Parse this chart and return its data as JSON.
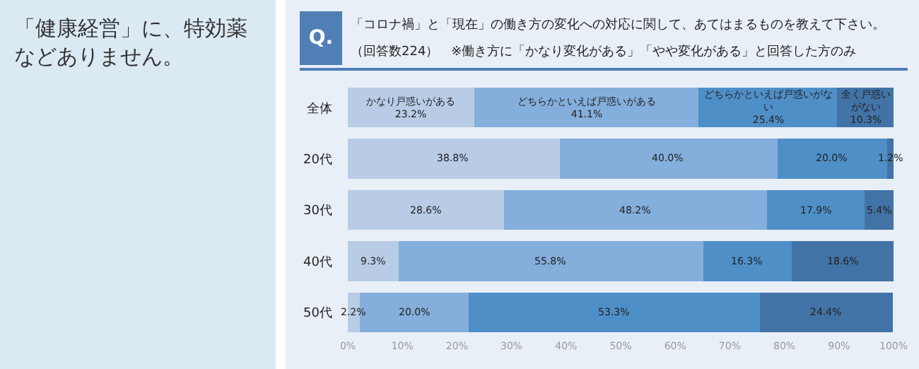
{
  "chart_data": {
    "type": "bar",
    "orientation": "horizontal",
    "stacked": true,
    "title": "「コロナ禍」と「現在」の働き方の変化への対応に関して、あてはまるものを教えて下さい。",
    "subtitle": "（回答数224）　※働き方に「かなり変化がある」「やや変化がある」と回答した方のみ",
    "annotations": [
      "Q.",
      "「健康経営」に、特効薬などありません。"
    ],
    "categories": [
      "全体",
      "20代",
      "30代",
      "40代",
      "50代"
    ],
    "series": [
      {
        "name": "かなり戸惑いがある",
        "color": "#b8cce6",
        "values": [
          23.2,
          38.8,
          28.6,
          9.3,
          2.2
        ],
        "value_labels": [
          "23.2%",
          "38.8%",
          "28.6%",
          "9.3%",
          "2.2%"
        ]
      },
      {
        "name": "どちらかといえば戸惑いがある",
        "color": "#84aedb",
        "values": [
          41.1,
          40.0,
          48.2,
          55.8,
          20.0
        ],
        "value_labels": [
          "41.1%",
          "40.0%",
          "48.2%",
          "55.8%",
          "20.0%"
        ]
      },
      {
        "name": "どちらかといえば戸惑いがない",
        "color": "#4f8fc8",
        "values": [
          25.4,
          20.0,
          17.9,
          16.3,
          53.3
        ],
        "value_labels": [
          "25.4%",
          "20.0%",
          "17.9%",
          "16.3%",
          "53.3%"
        ]
      },
      {
        "name": "全く戸惑いがない",
        "color": "#4273a6",
        "values": [
          10.3,
          1.2,
          5.4,
          18.6,
          24.4
        ],
        "value_labels": [
          "10.3%",
          "1.2%",
          "5.4%",
          "18.6%",
          "24.4%"
        ]
      }
    ],
    "xlim": [
      0,
      100
    ],
    "xticks": [
      {
        "value": 0,
        "label": "0%"
      },
      {
        "value": 10,
        "label": "10%"
      },
      {
        "value": 20,
        "label": "20%"
      },
      {
        "value": 30,
        "label": "30%"
      },
      {
        "value": 40,
        "label": "40%"
      },
      {
        "value": 50,
        "label": "50%"
      },
      {
        "value": 60,
        "label": "60%"
      },
      {
        "value": 70,
        "label": "70%"
      },
      {
        "value": 80,
        "label": "80%"
      },
      {
        "value": 90,
        "label": "90%"
      },
      {
        "value": 100,
        "label": "100%"
      }
    ],
    "grid": false,
    "legend": false
  }
}
